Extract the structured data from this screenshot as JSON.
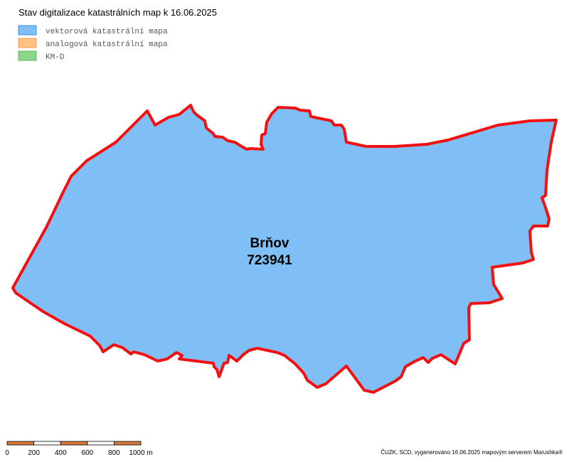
{
  "header": {
    "title": "Stav digitalizace katastrálních map k 16.06.2025"
  },
  "legend": {
    "items": [
      {
        "label": "vektorová katastrální mapa"
      },
      {
        "label": "analogová katastrální mapa"
      },
      {
        "label": "KM-D"
      }
    ]
  },
  "map": {
    "area_name": "Brňov",
    "area_code": "723941"
  },
  "scale_bar": {
    "labels": [
      "0",
      "200",
      "400",
      "600",
      "800",
      "1000 m"
    ]
  },
  "footer": {
    "credit": "ČUZK, SCD, vygenerováno 16.06.2025 mapovým serverem Marushka®"
  }
}
